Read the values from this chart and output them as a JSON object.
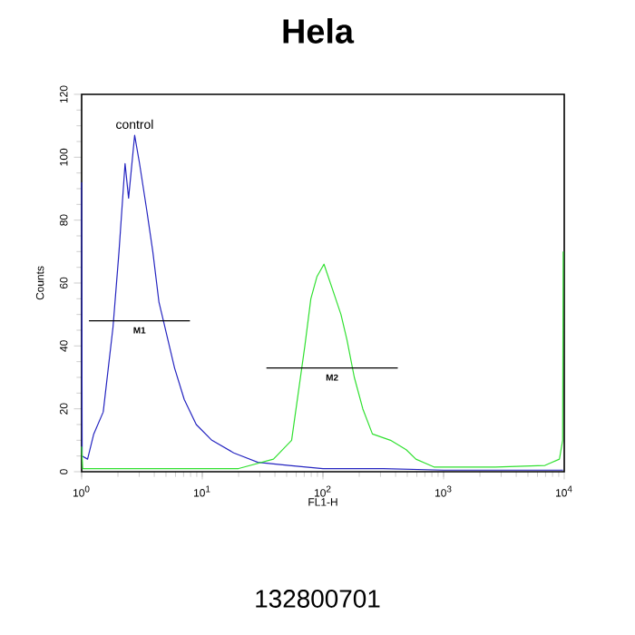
{
  "chart_data": {
    "type": "line",
    "title": "Hela",
    "xlabel": "FL1-H",
    "ylabel": "Counts",
    "log": "x",
    "marker": "none",
    "line_style": "solid",
    "xlim": [
      1,
      10000
    ],
    "ylim": [
      0,
      120
    ],
    "xticks": [
      {
        "value": 1,
        "label": "10$^{0}$"
      },
      {
        "value": 10,
        "label": "10$^{1}$"
      },
      {
        "value": 100,
        "label": "10$^{2}$"
      },
      {
        "value": 1000,
        "label": "10$^{3}$"
      },
      {
        "value": 10000,
        "label": "10$^{4}$"
      }
    ],
    "yticks": [
      0,
      20,
      40,
      60,
      80,
      100,
      120
    ],
    "series": [
      {
        "name": "control",
        "color": "#2424c0",
        "x": [
          1.0,
          1.01,
          1.12,
          1.26,
          1.51,
          1.82,
          2.04,
          2.29,
          2.45,
          2.75,
          3.02,
          3.47,
          3.89,
          4.37,
          4.9,
          5.89,
          7.08,
          8.91,
          12,
          18.2,
          28.8,
          52.5,
          100,
          316,
          1000,
          9770
        ],
        "values": [
          92,
          5,
          4,
          12,
          19,
          46,
          70,
          98,
          87,
          107,
          98,
          83,
          70,
          54,
          46,
          33,
          23,
          15,
          10,
          6,
          3,
          2,
          1,
          1,
          0.5,
          0.5
        ]
      },
      {
        "color": "#30e030",
        "x": [
          1.0,
          1.02,
          1.3,
          5,
          20,
          38.9,
          55,
          70.8,
          79.4,
          89.1,
          102,
          120,
          141,
          158,
          182,
          214,
          257,
          363,
          490,
          589,
          832,
          2690,
          6920,
          9120,
          9700,
          9800
        ],
        "values": [
          8,
          1,
          1,
          1,
          1,
          4,
          10,
          40,
          55,
          62,
          66,
          58,
          50,
          42,
          30,
          20,
          12,
          10,
          7,
          4,
          1.5,
          1.5,
          2,
          4,
          10,
          70
        ]
      },
      {
        "name": "M1",
        "color": "#000000",
        "x": [
          1.15,
          7.9
        ],
        "values": [
          48,
          48
        ]
      },
      {
        "name": "M2",
        "color": "#000000",
        "x": [
          34,
          417
        ],
        "values": [
          33,
          33
        ]
      }
    ],
    "annotations": [
      "132800701"
    ]
  }
}
